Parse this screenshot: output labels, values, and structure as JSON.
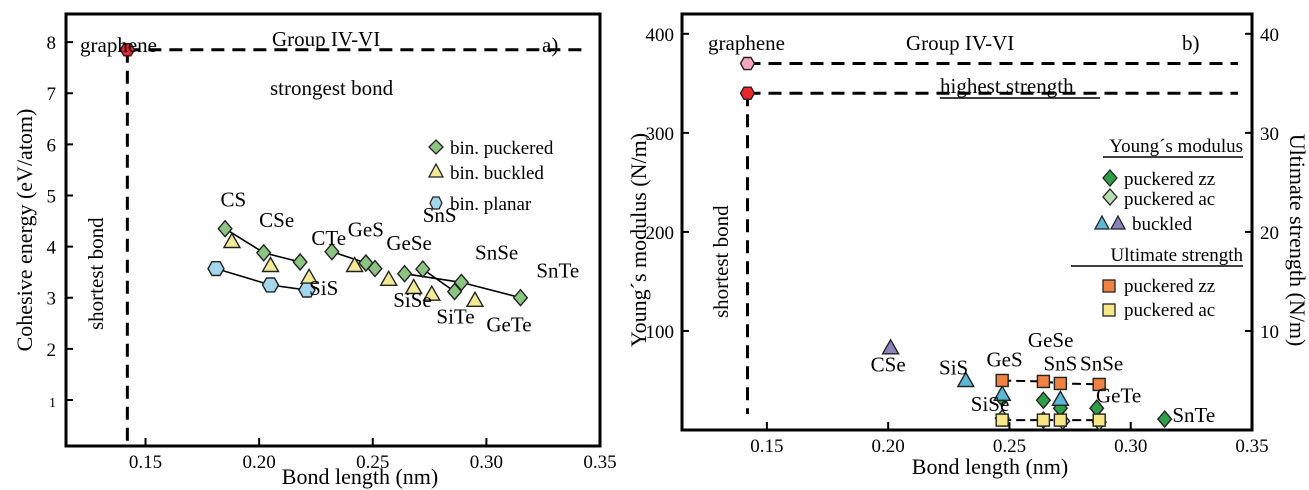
{
  "chart_data": [
    {
      "type": "scatter",
      "panel_label": "a)",
      "group_label": "Group IV-VI",
      "xlabel": "Bond length (nm)",
      "ylabel": "Cohesive energy (eV/atom)",
      "xlim": [
        0.115,
        0.35
      ],
      "ylim": [
        0.1,
        8.55
      ],
      "xticks": [
        "0.15",
        "0.20",
        "0.25",
        "0.30",
        "0.35"
      ],
      "yticks": [
        "1",
        "2",
        "3",
        "4",
        "5",
        "6",
        "7",
        "8"
      ],
      "annotations": {
        "graphene": "graphene",
        "strongest": "strongest bond",
        "shortest": "shortest bond"
      },
      "graphene_point": {
        "x": 0.142,
        "y": 7.85,
        "color": "#e8262c"
      },
      "series": [
        {
          "name": "bin. puckered",
          "marker": "diamond",
          "color": "#8cc484",
          "points": [
            {
              "x": 0.185,
              "y": 4.35
            },
            {
              "x": 0.202,
              "y": 3.88
            },
            {
              "x": 0.218,
              "y": 3.7
            },
            {
              "x": 0.232,
              "y": 3.9
            },
            {
              "x": 0.247,
              "y": 3.68
            },
            {
              "x": 0.251,
              "y": 3.57
            },
            {
              "x": 0.264,
              "y": 3.47
            },
            {
              "x": 0.272,
              "y": 3.56
            },
            {
              "x": 0.286,
              "y": 3.12
            },
            {
              "x": 0.289,
              "y": 3.3
            },
            {
              "x": 0.315,
              "y": 3.0
            }
          ]
        },
        {
          "name": "bin. buckled",
          "marker": "triangle",
          "color": "#f1eb97",
          "points": [
            {
              "x": 0.188,
              "y": 4.1
            },
            {
              "x": 0.205,
              "y": 3.63
            },
            {
              "x": 0.222,
              "y": 3.4
            },
            {
              "x": 0.242,
              "y": 3.63
            },
            {
              "x": 0.257,
              "y": 3.36
            },
            {
              "x": 0.268,
              "y": 3.2
            },
            {
              "x": 0.276,
              "y": 3.07
            },
            {
              "x": 0.295,
              "y": 2.95
            }
          ]
        },
        {
          "name": "bin. planar",
          "marker": "hexagon",
          "color": "#a4d6ee",
          "points": [
            {
              "x": 0.181,
              "y": 3.57
            },
            {
              "x": 0.205,
              "y": 3.25
            },
            {
              "x": 0.221,
              "y": 3.15
            }
          ]
        }
      ],
      "point_labels": [
        {
          "text": "CS",
          "x": 0.183,
          "y": 4.78
        },
        {
          "text": "CSe",
          "x": 0.2,
          "y": 4.38
        },
        {
          "text": "CTe",
          "x": 0.223,
          "y": 4.03
        },
        {
          "text": "GeS",
          "x": 0.239,
          "y": 4.2
        },
        {
          "text": "GeSe",
          "x": 0.256,
          "y": 3.93
        },
        {
          "text": "SnS",
          "x": 0.272,
          "y": 4.48
        },
        {
          "text": "SnSe",
          "x": 0.295,
          "y": 3.75
        },
        {
          "text": "SnTe",
          "x": 0.322,
          "y": 3.4
        },
        {
          "text": "SiS",
          "x": 0.222,
          "y": 3.05
        },
        {
          "text": "SiSe",
          "x": 0.259,
          "y": 2.82
        },
        {
          "text": "SiTe",
          "x": 0.278,
          "y": 2.5
        },
        {
          "text": "GeTe",
          "x": 0.3,
          "y": 2.34
        }
      ]
    },
    {
      "type": "scatter",
      "panel_label": "b)",
      "group_label": "Group IV-VI",
      "xlabel": "Bond length (nm)",
      "ylabel": "Young´s modulus (N/m)",
      "y2label": "Ultimate strength (N/m)",
      "xlim": [
        0.115,
        0.35
      ],
      "ylim": [
        0,
        420
      ],
      "y2lim": [
        0,
        42
      ],
      "xticks": [
        "0.15",
        "0.20",
        "0.25",
        "0.30",
        "0.35"
      ],
      "yticks": [
        "100",
        "200",
        "300",
        "400"
      ],
      "y2ticks": [
        "10",
        "20",
        "30",
        "40"
      ],
      "annotations": {
        "graphene": "graphene",
        "highest": "highest strength",
        "shortest": "shortest bond"
      },
      "graphene_points": [
        {
          "x": 0.142,
          "y": 340,
          "color": "#e8262c"
        },
        {
          "x": 0.142,
          "y": 370,
          "color": "#f4a7b9"
        }
      ],
      "legend": {
        "header_young": "Young´s modulus",
        "header_ultimate": "Ultimate strength",
        "items": [
          "puckered zz",
          "puckered ac",
          "buckled",
          "puckered zz",
          "puckered ac"
        ]
      },
      "series": [
        {
          "name": "puckered zz",
          "group": "young",
          "marker": "diamond",
          "color": "#2e9e48",
          "points": [
            {
              "x": 0.247,
              "y": 32
            },
            {
              "x": 0.264,
              "y": 30
            },
            {
              "x": 0.271,
              "y": 22
            },
            {
              "x": 0.286,
              "y": 22
            },
            {
              "x": 0.314,
              "y": 11
            }
          ]
        },
        {
          "name": "puckered ac",
          "group": "young",
          "marker": "diamond",
          "color": "#b7dcb0",
          "points": [
            {
              "x": 0.247,
              "y": 12
            },
            {
              "x": 0.264,
              "y": 10
            },
            {
              "x": 0.272,
              "y": 9
            },
            {
              "x": 0.287,
              "y": 8
            }
          ]
        },
        {
          "name": "buckled",
          "group": "young",
          "marker": "triangle",
          "colors": [
            "#5fb7d6",
            "#8c83bd"
          ],
          "points": [
            {
              "x": 0.201,
              "y": 83,
              "color": "#8c83bd"
            },
            {
              "x": 0.232,
              "y": 50,
              "color": "#5fb7d6"
            },
            {
              "x": 0.247,
              "y": 36,
              "color": "#5fb7d6"
            },
            {
              "x": 0.271,
              "y": 31,
              "color": "#5fb7d6"
            }
          ]
        },
        {
          "name": "puckered zz",
          "group": "ultimate",
          "marker": "square",
          "color": "#ef8242",
          "points": [
            {
              "x": 0.247,
              "y": 50
            },
            {
              "x": 0.264,
              "y": 49
            },
            {
              "x": 0.271,
              "y": 47
            },
            {
              "x": 0.287,
              "y": 46
            }
          ]
        },
        {
          "name": "puckered ac",
          "group": "ultimate",
          "marker": "square",
          "color": "#f8e788",
          "points": [
            {
              "x": 0.247,
              "y": 10
            },
            {
              "x": 0.264,
              "y": 10
            },
            {
              "x": 0.271,
              "y": 10
            },
            {
              "x": 0.287,
              "y": 10
            }
          ]
        }
      ],
      "point_labels": [
        {
          "text": "CSe",
          "x": 0.2,
          "y": 59
        },
        {
          "text": "SiS",
          "x": 0.227,
          "y": 56
        },
        {
          "text": "GeS",
          "x": 0.248,
          "y": 64
        },
        {
          "text": "GeSe",
          "x": 0.267,
          "y": 84
        },
        {
          "text": "SnS",
          "x": 0.271,
          "y": 60
        },
        {
          "text": "SnSe",
          "x": 0.288,
          "y": 60
        },
        {
          "text": "SiSe",
          "x": 0.242,
          "y": 19
        },
        {
          "text": "GeTe",
          "x": 0.295,
          "y": 28
        },
        {
          "text": "SnTe",
          "x": 0.326,
          "y": 8
        }
      ]
    }
  ]
}
